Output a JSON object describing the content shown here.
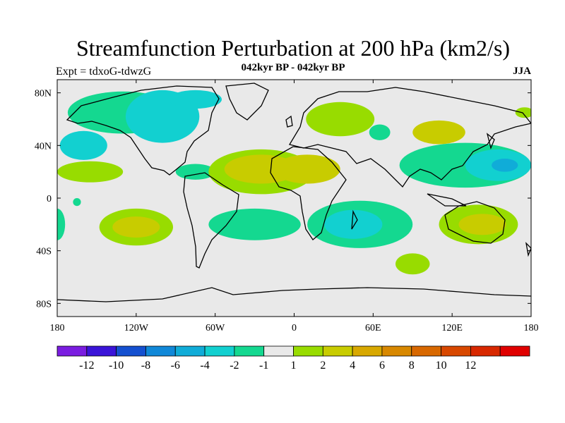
{
  "title": "Streamfunction Perturbation at 200 hPa (km2/s)",
  "subtitle": "042kyr BP - 042kyr BP",
  "expt_label": "Expt = tdxoG-tdwzG",
  "season": "JJA",
  "map": {
    "projection": "cylindrical-equidistant",
    "lon_range": [
      -180,
      180
    ],
    "lat_range": [
      -90,
      90
    ],
    "x_ticks": [
      {
        "lon": -180,
        "label": "180"
      },
      {
        "lon": -120,
        "label": "120W"
      },
      {
        "lon": -60,
        "label": "60W"
      },
      {
        "lon": 0,
        "label": "0"
      },
      {
        "lon": 60,
        "label": "60E"
      },
      {
        "lon": 120,
        "label": "120E"
      },
      {
        "lon": 180,
        "label": "180"
      }
    ],
    "y_ticks": [
      {
        "lat": 80,
        "label": "80N"
      },
      {
        "lat": 40,
        "label": "40N"
      },
      {
        "lat": 0,
        "label": "0"
      },
      {
        "lat": -40,
        "label": "40S"
      },
      {
        "lat": -80,
        "label": "80S"
      }
    ],
    "background_color": "#e9e9e9",
    "coastline_color": "#000000"
  },
  "colorbar": {
    "colors": [
      "#7a1de0",
      "#3a14d8",
      "#1450d0",
      "#1088d8",
      "#10acd8",
      "#12d0d0",
      "#14d890",
      "#e9e9e9",
      "#98dc00",
      "#c8cc00",
      "#d8a800",
      "#d88800",
      "#d86800",
      "#d84800",
      "#d82800",
      "#e00000"
    ],
    "labels": [
      "-12",
      "-10",
      "-8",
      "-6",
      "-4",
      "-2",
      "-1",
      "1",
      "2",
      "4",
      "6",
      "8",
      "10",
      "12"
    ]
  },
  "fields": [
    {
      "lon": -130,
      "lat": 65,
      "rx": 42,
      "ry": 16,
      "level": 2,
      "color": "#14d890"
    },
    {
      "lon": -100,
      "lat": 62,
      "rx": 28,
      "ry": 20,
      "level": 4,
      "color": "#12d0d0"
    },
    {
      "lon": -75,
      "lat": 75,
      "rx": 20,
      "ry": 7,
      "level": 4,
      "color": "#12d0d0"
    },
    {
      "lon": -160,
      "lat": 40,
      "rx": 18,
      "ry": 11,
      "level": 4,
      "color": "#12d0d0"
    },
    {
      "lon": -155,
      "lat": 20,
      "rx": 25,
      "ry": 8,
      "level": 1,
      "color": "#98dc00"
    },
    {
      "lon": -75,
      "lat": 20,
      "rx": 15,
      "ry": 6,
      "level": 2,
      "color": "#14d890"
    },
    {
      "lon": -25,
      "lat": 20,
      "rx": 40,
      "ry": 17,
      "level": 1,
      "color": "#98dc00"
    },
    {
      "lon": -25,
      "lat": 22,
      "rx": 28,
      "ry": 11,
      "level": 2,
      "color": "#c8cc00"
    },
    {
      "lon": 10,
      "lat": 22,
      "rx": 25,
      "ry": 11,
      "level": 2,
      "color": "#c8cc00"
    },
    {
      "lon": 35,
      "lat": 60,
      "rx": 26,
      "ry": 13,
      "level": 1,
      "color": "#98dc00"
    },
    {
      "lon": 65,
      "lat": 50,
      "rx": 8,
      "ry": 6,
      "level": 2,
      "color": "#14d890"
    },
    {
      "lon": 110,
      "lat": 50,
      "rx": 20,
      "ry": 9,
      "level": 2,
      "color": "#c8cc00"
    },
    {
      "lon": 130,
      "lat": 25,
      "rx": 50,
      "ry": 17,
      "level": 2,
      "color": "#14d890"
    },
    {
      "lon": 155,
      "lat": 25,
      "rx": 25,
      "ry": 12,
      "level": 4,
      "color": "#12d0d0"
    },
    {
      "lon": 160,
      "lat": 25,
      "rx": 10,
      "ry": 5,
      "level": 6,
      "color": "#10acd8"
    },
    {
      "lon": -120,
      "lat": -22,
      "rx": 28,
      "ry": 14,
      "level": 1,
      "color": "#98dc00"
    },
    {
      "lon": -120,
      "lat": -22,
      "rx": 18,
      "ry": 8,
      "level": 2,
      "color": "#c8cc00"
    },
    {
      "lon": -30,
      "lat": -20,
      "rx": 35,
      "ry": 12,
      "level": 2,
      "color": "#14d890"
    },
    {
      "lon": 50,
      "lat": -20,
      "rx": 40,
      "ry": 18,
      "level": 2,
      "color": "#14d890"
    },
    {
      "lon": 45,
      "lat": -20,
      "rx": 22,
      "ry": 11,
      "level": 4,
      "color": "#12d0d0"
    },
    {
      "lon": 140,
      "lat": -20,
      "rx": 30,
      "ry": 15,
      "level": 1,
      "color": "#98dc00"
    },
    {
      "lon": 143,
      "lat": -20,
      "rx": 18,
      "ry": 8,
      "level": 2,
      "color": "#c8cc00"
    },
    {
      "lon": 90,
      "lat": -50,
      "rx": 13,
      "ry": 8,
      "level": 1,
      "color": "#98dc00"
    },
    {
      "lon": -180,
      "lat": -20,
      "rx": 6,
      "ry": 12,
      "level": 2,
      "color": "#14d890"
    },
    {
      "lon": 175,
      "lat": 65,
      "rx": 7,
      "ry": 4,
      "level": 1,
      "color": "#98dc00"
    },
    {
      "lon": -165,
      "lat": -3,
      "rx": 3,
      "ry": 3,
      "level": 2,
      "color": "#14d890"
    }
  ]
}
